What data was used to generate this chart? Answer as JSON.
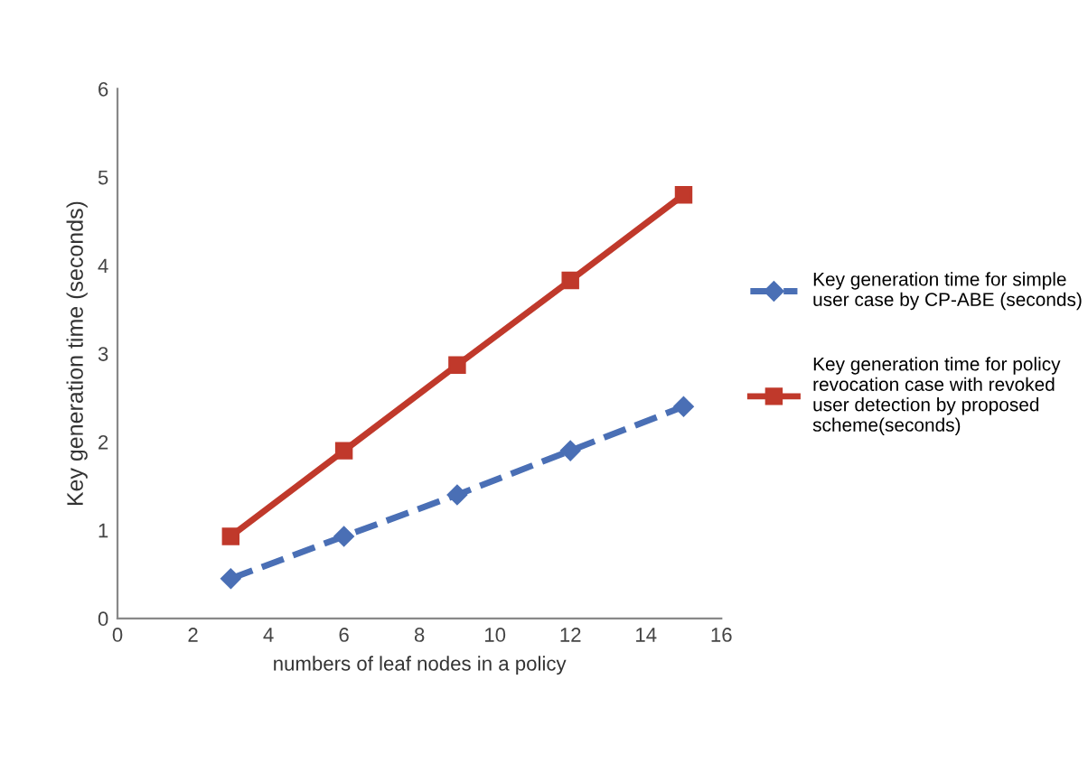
{
  "chart_data": {
    "type": "line",
    "xlabel": "numbers of leaf nodes in a policy",
    "ylabel": "Key generation time (seconds)",
    "x": [
      3,
      6,
      9,
      12,
      15
    ],
    "series": [
      {
        "name": "Key generation time for simple user case by CP-ABE (seconds)",
        "color": "#4a6fb5",
        "values": [
          0.45,
          0.93,
          1.4,
          1.9,
          2.4
        ],
        "marker": "diamond",
        "line_style": "dashed"
      },
      {
        "name": "Key generation time for policy revocation case with revoked user detection by proposed scheme(seconds)",
        "color": "#c0392b",
        "values": [
          0.93,
          1.9,
          2.87,
          3.83,
          4.8
        ],
        "marker": "square",
        "line_style": "solid"
      }
    ],
    "xlim": [
      0,
      16
    ],
    "ylim": [
      0,
      6
    ],
    "xticks": [
      0,
      2,
      4,
      6,
      8,
      10,
      12,
      14,
      16
    ],
    "yticks": [
      0,
      1,
      2,
      3,
      4,
      5,
      6
    ],
    "grid": false,
    "legend": "right"
  }
}
